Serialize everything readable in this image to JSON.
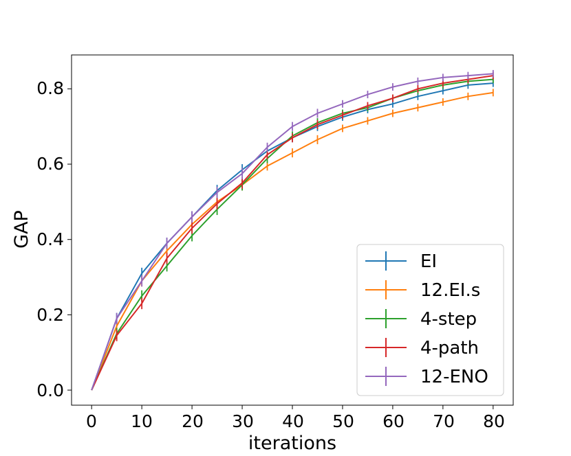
{
  "chart_data": {
    "type": "line",
    "title": "",
    "xlabel": "iterations",
    "ylabel": "GAP",
    "xlim": [
      -4,
      84
    ],
    "ylim": [
      -0.04,
      0.89
    ],
    "xticks": [
      0,
      10,
      20,
      30,
      40,
      50,
      60,
      70,
      80
    ],
    "yticks": [
      0.0,
      0.2,
      0.4,
      0.6,
      0.8
    ],
    "xtick_labels": [
      "0",
      "10",
      "20",
      "30",
      "40",
      "50",
      "60",
      "70",
      "80"
    ],
    "ytick_labels": [
      "0.0",
      "0.2",
      "0.4",
      "0.6",
      "0.8"
    ],
    "grid": false,
    "legend_position": "lower-right",
    "x": [
      0,
      5,
      10,
      15,
      20,
      25,
      30,
      35,
      40,
      45,
      50,
      55,
      60,
      65,
      70,
      75,
      80
    ],
    "series": [
      {
        "name": "EI",
        "color": "#1f77b4",
        "values": [
          0.0,
          0.19,
          0.31,
          0.39,
          0.46,
          0.53,
          0.585,
          0.635,
          0.67,
          0.7,
          0.725,
          0.745,
          0.76,
          0.78,
          0.795,
          0.81,
          0.815
        ],
        "errors": [
          0.0,
          0.015,
          0.015,
          0.015,
          0.015,
          0.015,
          0.015,
          0.012,
          0.012,
          0.012,
          0.01,
          0.01,
          0.01,
          0.01,
          0.01,
          0.01,
          0.01
        ]
      },
      {
        "name": "12.EI.s",
        "color": "#ff7f0e",
        "values": [
          0.0,
          0.17,
          0.29,
          0.37,
          0.44,
          0.5,
          0.545,
          0.595,
          0.63,
          0.665,
          0.695,
          0.715,
          0.735,
          0.75,
          0.765,
          0.78,
          0.79
        ],
        "errors": [
          0.0,
          0.015,
          0.015,
          0.015,
          0.015,
          0.015,
          0.015,
          0.012,
          0.012,
          0.012,
          0.01,
          0.01,
          0.01,
          0.01,
          0.01,
          0.01,
          0.01
        ]
      },
      {
        "name": "4-step",
        "color": "#2ca02c",
        "values": [
          0.0,
          0.15,
          0.25,
          0.33,
          0.41,
          0.48,
          0.545,
          0.615,
          0.675,
          0.71,
          0.735,
          0.75,
          0.775,
          0.795,
          0.81,
          0.82,
          0.825
        ],
        "errors": [
          0.0,
          0.015,
          0.015,
          0.015,
          0.015,
          0.015,
          0.015,
          0.012,
          0.012,
          0.012,
          0.01,
          0.01,
          0.01,
          0.01,
          0.01,
          0.01,
          0.01
        ]
      },
      {
        "name": "4-path",
        "color": "#d62728",
        "values": [
          0.0,
          0.145,
          0.23,
          0.35,
          0.43,
          0.495,
          0.55,
          0.625,
          0.67,
          0.705,
          0.73,
          0.755,
          0.775,
          0.8,
          0.815,
          0.825,
          0.835
        ],
        "errors": [
          0.0,
          0.015,
          0.015,
          0.015,
          0.015,
          0.015,
          0.015,
          0.012,
          0.012,
          0.012,
          0.01,
          0.01,
          0.01,
          0.01,
          0.01,
          0.01,
          0.01
        ]
      },
      {
        "name": "12-ENO",
        "color": "#9467bd",
        "values": [
          0.0,
          0.19,
          0.29,
          0.39,
          0.46,
          0.525,
          0.575,
          0.645,
          0.7,
          0.735,
          0.76,
          0.785,
          0.805,
          0.82,
          0.83,
          0.835,
          0.84
        ],
        "errors": [
          0.0,
          0.015,
          0.015,
          0.015,
          0.015,
          0.015,
          0.015,
          0.012,
          0.012,
          0.012,
          0.01,
          0.01,
          0.01,
          0.01,
          0.01,
          0.01,
          0.01
        ]
      }
    ]
  }
}
